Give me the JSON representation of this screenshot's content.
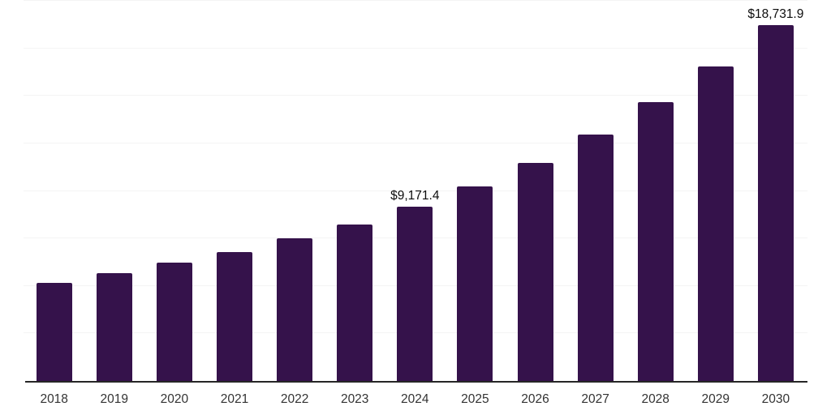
{
  "chart_data": {
    "type": "bar",
    "title": "",
    "xlabel": "",
    "ylabel": "",
    "categories": [
      "2018",
      "2019",
      "2020",
      "2021",
      "2022",
      "2023",
      "2024",
      "2025",
      "2026",
      "2027",
      "2028",
      "2029",
      "2030"
    ],
    "values": [
      5180,
      5670,
      6230,
      6800,
      7510,
      8230,
      9171.4,
      10250,
      11490,
      12970,
      14660,
      16560,
      18731.9
    ],
    "bar_labels": [
      "",
      "",
      "",
      "",
      "",
      "",
      "$9,171.4",
      "",
      "",
      "",
      "",
      "",
      "$18,731.9"
    ],
    "ylim": [
      0,
      20000
    ],
    "gridline_step": 2500,
    "grid": true,
    "legend": false,
    "colors": {
      "bar": "#35124B",
      "gridline": "#f4f4f4",
      "axis_line": "#262626",
      "tick_label": "#333333",
      "data_label": "#0d0d0d",
      "background": "#ffffff"
    }
  }
}
